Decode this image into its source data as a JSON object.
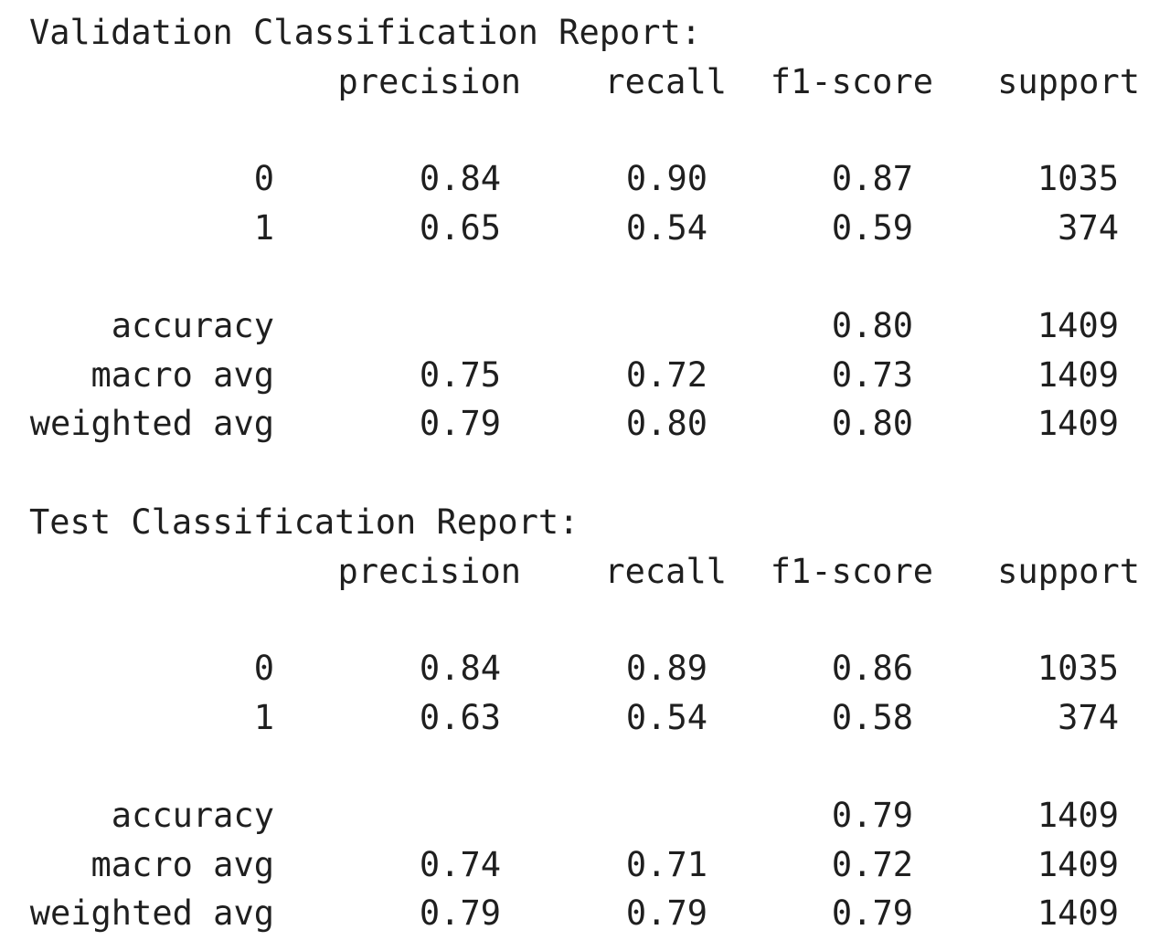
{
  "reports": [
    {
      "title": "Validation Classification Report:",
      "header": {
        "precision": "precision",
        "recall": "recall",
        "f1": "f1-score",
        "support": "support"
      },
      "rows": [
        {
          "label": "0",
          "precision": "0.84",
          "recall": "0.90",
          "f1": "0.87",
          "support": "1035"
        },
        {
          "label": "1",
          "precision": "0.65",
          "recall": "0.54",
          "f1": "0.59",
          "support": "374"
        },
        {
          "label": "accuracy",
          "f1": "0.80",
          "support": "1409"
        },
        {
          "label": "macro avg",
          "precision": "0.75",
          "recall": "0.72",
          "f1": "0.73",
          "support": "1409"
        },
        {
          "label": "weighted avg",
          "precision": "0.79",
          "recall": "0.80",
          "f1": "0.80",
          "support": "1409"
        }
      ]
    },
    {
      "title": "Test Classification Report:",
      "header": {
        "precision": "precision",
        "recall": "recall",
        "f1": "f1-score",
        "support": "support"
      },
      "rows": [
        {
          "label": "0",
          "precision": "0.84",
          "recall": "0.89",
          "f1": "0.86",
          "support": "1035"
        },
        {
          "label": "1",
          "precision": "0.63",
          "recall": "0.54",
          "f1": "0.58",
          "support": "374"
        },
        {
          "label": "accuracy",
          "f1": "0.79",
          "support": "1409"
        },
        {
          "label": "macro avg",
          "precision": "0.74",
          "recall": "0.71",
          "f1": "0.72",
          "support": "1409"
        },
        {
          "label": "weighted avg",
          "precision": "0.79",
          "recall": "0.79",
          "f1": "0.79",
          "support": "1409"
        }
      ]
    }
  ]
}
